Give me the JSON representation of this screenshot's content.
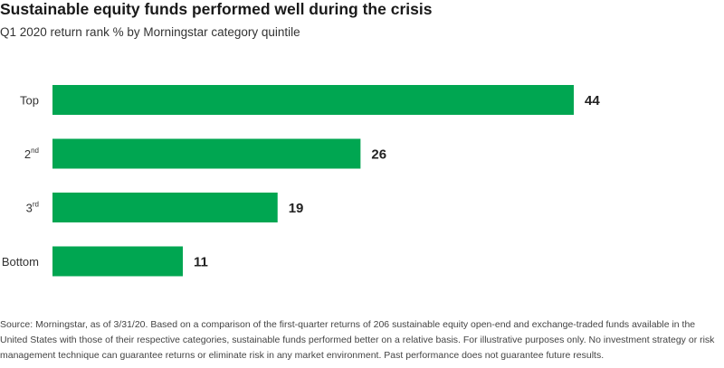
{
  "title": "Sustainable equity funds performed well during the crisis",
  "subtitle": "Q1 2020 return rank % by Morningstar category quintile",
  "source": "Source: Morningstar, as of 3/31/20. Based on a comparison of the first-quarter returns of 206 sustainable equity open-end and exchange-traded funds available in the United States with those of their respective categories, sustainable funds performed better on a relative basis. For illustrative purposes only. No investment strategy or risk management technique can guarantee returns or eliminate risk in any market environment. Past performance does not guarantee future results.",
  "colors": {
    "bar": "#00a651",
    "text": "#222222"
  },
  "chart_data": {
    "type": "bar",
    "orientation": "horizontal",
    "categories": [
      {
        "label": "Top",
        "sup": ""
      },
      {
        "label": "2",
        "sup": "nd"
      },
      {
        "label": "3",
        "sup": "rd"
      },
      {
        "label": "Bottom",
        "sup": ""
      }
    ],
    "values": [
      44,
      26,
      19,
      11
    ],
    "xlim": [
      0,
      44
    ],
    "grid": false,
    "legend": false,
    "data_labels": true
  }
}
